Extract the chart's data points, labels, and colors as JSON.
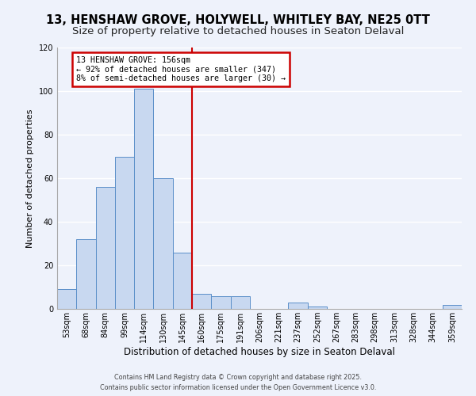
{
  "title": "13, HENSHAW GROVE, HOLYWELL, WHITLEY BAY, NE25 0TT",
  "subtitle": "Size of property relative to detached houses in Seaton Delaval",
  "xlabel": "Distribution of detached houses by size in Seaton Delaval",
  "ylabel": "Number of detached properties",
  "bin_labels": [
    "53sqm",
    "68sqm",
    "84sqm",
    "99sqm",
    "114sqm",
    "130sqm",
    "145sqm",
    "160sqm",
    "175sqm",
    "191sqm",
    "206sqm",
    "221sqm",
    "237sqm",
    "252sqm",
    "267sqm",
    "283sqm",
    "298sqm",
    "313sqm",
    "328sqm",
    "344sqm",
    "359sqm"
  ],
  "bin_values": [
    9,
    32,
    56,
    70,
    101,
    60,
    26,
    7,
    6,
    6,
    0,
    0,
    3,
    1,
    0,
    0,
    0,
    0,
    0,
    0,
    2
  ],
  "bar_color": "#c8d8f0",
  "bar_edge_color": "#5b8fc9",
  "vline_index": 7,
  "property_line_label": "13 HENSHAW GROVE: 156sqm",
  "annotation_line1": "← 92% of detached houses are smaller (347)",
  "annotation_line2": "8% of semi-detached houses are larger (30) →",
  "annotation_box_color": "#ffffff",
  "annotation_box_edge_color": "#cc0000",
  "vline_color": "#cc0000",
  "ylim": [
    0,
    120
  ],
  "yticks": [
    0,
    20,
    40,
    60,
    80,
    100,
    120
  ],
  "footer1": "Contains HM Land Registry data © Crown copyright and database right 2025.",
  "footer2": "Contains public sector information licensed under the Open Government Licence v3.0.",
  "background_color": "#eef2fb",
  "grid_color": "#ffffff",
  "title_fontsize": 10.5,
  "subtitle_fontsize": 9.5,
  "ylabel_fontsize": 8,
  "xlabel_fontsize": 8.5,
  "tick_fontsize": 7,
  "footer_fontsize": 5.8
}
